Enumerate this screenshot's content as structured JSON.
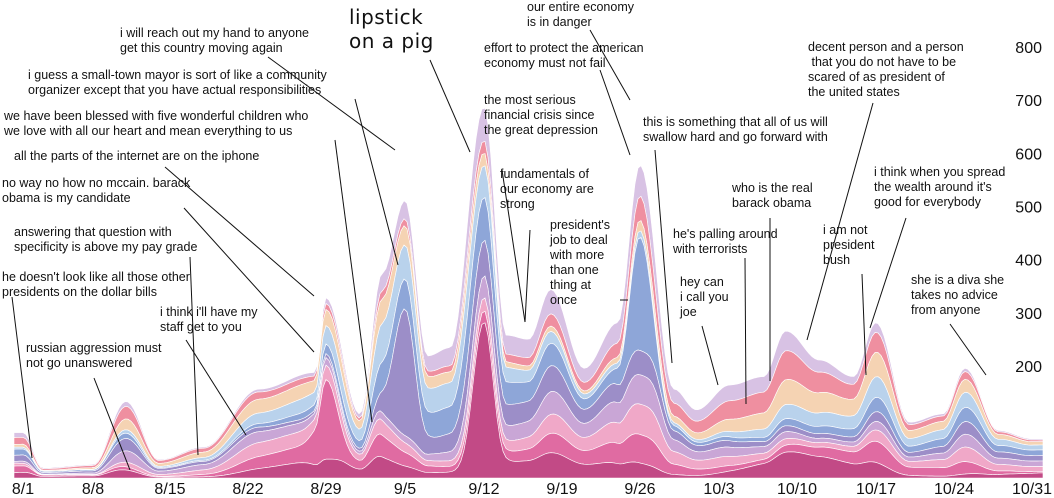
{
  "chart_data": {
    "type": "area",
    "subtype": "streamgraph",
    "x": [
      "8/1",
      "8/8",
      "8/15",
      "8/22",
      "8/29",
      "9/5",
      "9/12",
      "9/19",
      "9/26",
      "10/3",
      "10/10",
      "10/17",
      "10/24",
      "10/31"
    ],
    "y_ticks": [
      200,
      300,
      400,
      500,
      600,
      700,
      800
    ],
    "totals": [
      {
        "date": "8/1",
        "value": 95
      },
      {
        "date": "8/3",
        "value": 10
      },
      {
        "date": "8/8",
        "value": 18
      },
      {
        "date": "8/11",
        "value": 170
      },
      {
        "date": "8/14",
        "value": 30
      },
      {
        "date": "8/18",
        "value": 60
      },
      {
        "date": "8/23",
        "value": 200
      },
      {
        "date": "8/28",
        "value": 240
      },
      {
        "date": "8/29",
        "value": 420
      },
      {
        "date": "9/1",
        "value": 140
      },
      {
        "date": "9/3",
        "value": 480
      },
      {
        "date": "9/5",
        "value": 655
      },
      {
        "date": "9/7",
        "value": 280
      },
      {
        "date": "9/9",
        "value": 300
      },
      {
        "date": "9/12",
        "value": 880
      },
      {
        "date": "9/14",
        "value": 330
      },
      {
        "date": "9/16",
        "value": 320
      },
      {
        "date": "9/18",
        "value": 440
      },
      {
        "date": "9/21",
        "value": 250
      },
      {
        "date": "9/24",
        "value": 360
      },
      {
        "date": "9/26",
        "value": 740
      },
      {
        "date": "9/29",
        "value": 200
      },
      {
        "date": "10/1",
        "value": 150
      },
      {
        "date": "10/4",
        "value": 210
      },
      {
        "date": "10/7",
        "value": 230
      },
      {
        "date": "10/9",
        "value": 340
      },
      {
        "date": "10/12",
        "value": 270
      },
      {
        "date": "10/15",
        "value": 230
      },
      {
        "date": "10/17",
        "value": 360
      },
      {
        "date": "10/20",
        "value": 120
      },
      {
        "date": "10/23",
        "value": 140
      },
      {
        "date": "10/25",
        "value": 250
      },
      {
        "date": "10/28",
        "value": 100
      },
      {
        "date": "10/31",
        "value": 80
      }
    ],
    "series": [
      {
        "date": "9/12",
        "value": 880,
        "color": "#c24a86"
      },
      {
        "date": "9/5",
        "value": 655,
        "color": "#9c8ec8"
      },
      {
        "date": "9/26",
        "value": 740,
        "color": "#8ea6d8"
      },
      {
        "date": "8/29",
        "value": 420,
        "color": "#e06ba2"
      }
    ],
    "colors": [
      "#c24a86",
      "#e06ba2",
      "#f0a8c8",
      "#c9a6d6",
      "#9c8ec8",
      "#8ea6d8",
      "#b9d2ec",
      "#f5d3b3",
      "#ef8fa0",
      "#d8c2e4"
    ],
    "annotations": [
      {
        "text": [
          "lipstick",
          "on a pig"
        ],
        "big": true,
        "date": "9/12",
        "value": 660
      },
      {
        "text": [
          "i will reach out my hand to anyone",
          "get this country moving again"
        ],
        "date": "9/1",
        "value": 350
      },
      {
        "text": [
          "i guess a small-town mayor is sort of like a community",
          "organizer except that you have actual responsibilities"
        ],
        "date": "9/5",
        "value": 350
      },
      {
        "text": [
          "we have been blessed with five wonderful children who",
          "we love with all our heart and mean everything to us"
        ],
        "date": "9/3",
        "value": 110
      },
      {
        "text": [
          "all the parts of the internet are on the iphone"
        ],
        "date": "8/28",
        "value": 355
      },
      {
        "text": [
          "no way no how no mccain. barack",
          "obama is my candidate"
        ],
        "date": "8/28",
        "value": 240
      },
      {
        "text": [
          "answering that question with",
          "specificity is above my pay grade"
        ],
        "date": "8/17",
        "value": 40
      },
      {
        "text": [
          "he doesn't look like all those other",
          "presidents on the dollar bills"
        ],
        "date": "8/1",
        "value": 90
      },
      {
        "text": [
          "i think i'll have my",
          "staff get to you"
        ],
        "date": "8/23",
        "value": 120
      },
      {
        "text": [
          "russian aggression must",
          "not go unanswered"
        ],
        "date": "8/10",
        "value": 15
      },
      {
        "text": [
          "our entire economy",
          "is in danger"
        ],
        "date": "9/27",
        "value": 700
      },
      {
        "text": [
          "effort to protect the american",
          "economy must not fail"
        ],
        "date": "9/26",
        "value": 605
      },
      {
        "text": [
          "the most serious",
          "financial crisis since",
          "the great depression"
        ],
        "date": "9/17",
        "value": 280
      },
      {
        "text": [
          "fundamentals of",
          "our economy are",
          "strong"
        ],
        "date": "9/17",
        "value": 430
      },
      {
        "text": [
          "president's",
          "job to deal",
          "with more",
          "than one",
          "thing at",
          "once"
        ],
        "date": "9/26",
        "value": 385
      },
      {
        "text": [
          "this is something that all of us will",
          "swallow hard and go forward with"
        ],
        "date": "9/30",
        "value": 215
      },
      {
        "text": [
          "he's palling around",
          "with terrorists"
        ],
        "date": "10/3",
        "value": 210
      },
      {
        "text": [
          "hey can",
          "i call you",
          "joe"
        ],
        "date": "10/1",
        "value": 235
      },
      {
        "text": [
          "who is the real",
          "barack obama"
        ],
        "date": "10/7",
        "value": 150
      },
      {
        "text": [
          "decent person and a person",
          " that you do not have to be",
          "scared of as president of",
          "the united states"
        ],
        "date": "10/8",
        "value": 140
      },
      {
        "text": [
          "i am not",
          "president",
          "bush"
        ],
        "date": "10/10",
        "value": 275
      },
      {
        "text": [
          "i think when you spread",
          "the wealth around it's",
          "good for everybody"
        ],
        "date": "10/16",
        "value": 300
      },
      {
        "text": [
          "she is a diva she",
          "takes no advice",
          "from anyone"
        ],
        "date": "10/25",
        "value": 190
      }
    ]
  }
}
